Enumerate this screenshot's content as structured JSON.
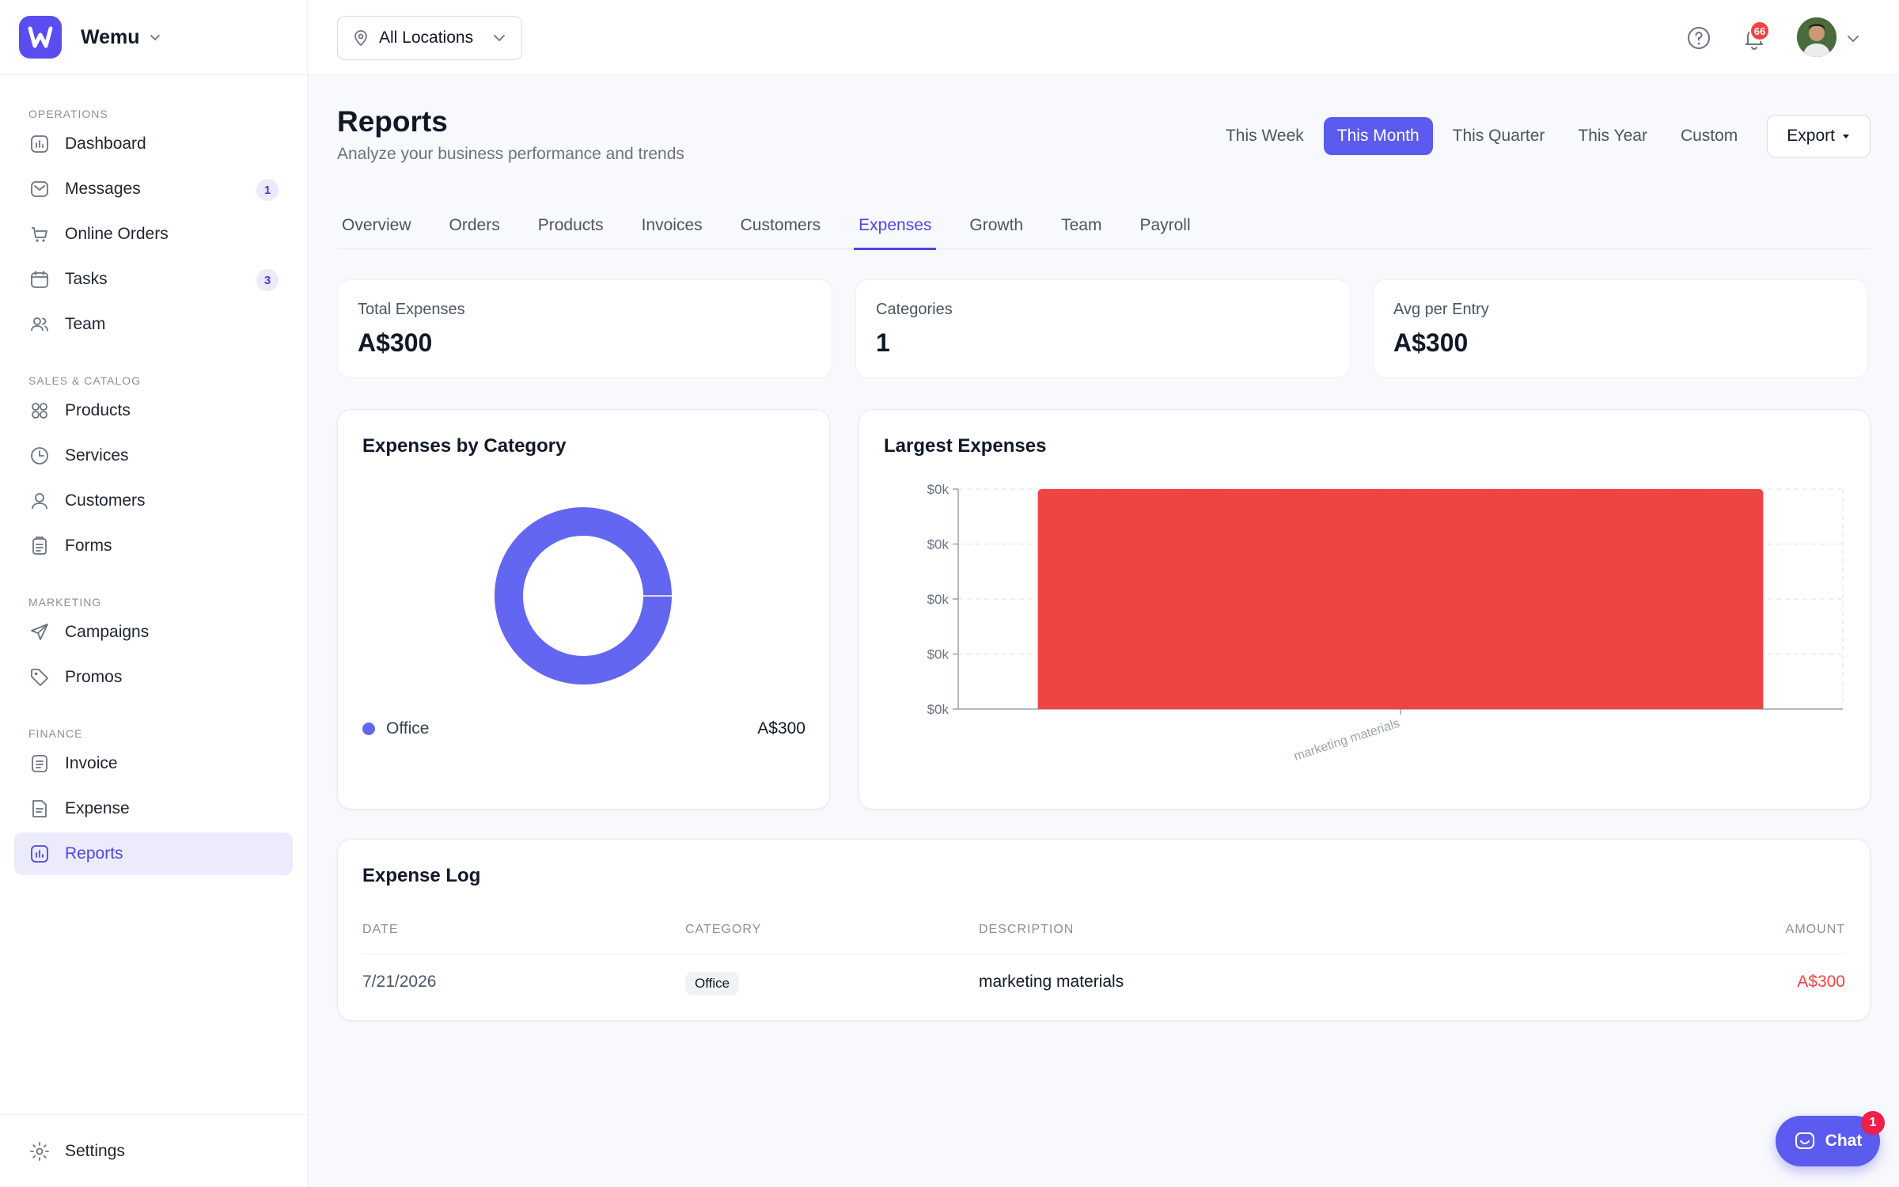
{
  "brand": {
    "name": "Wemu"
  },
  "sidebar": {
    "sections": [
      {
        "title": "OPERATIONS",
        "items": [
          {
            "label": "Dashboard",
            "icon": "bar-chart-icon"
          },
          {
            "label": "Messages",
            "icon": "inbox-icon",
            "badge": "1"
          },
          {
            "label": "Online Orders",
            "icon": "cart-icon"
          },
          {
            "label": "Tasks",
            "icon": "calendar-icon",
            "badge": "3"
          },
          {
            "label": "Team",
            "icon": "users-icon"
          }
        ]
      },
      {
        "title": "SALES & CATALOG",
        "items": [
          {
            "label": "Products",
            "icon": "grid-icon"
          },
          {
            "label": "Services",
            "icon": "clock-icon"
          },
          {
            "label": "Customers",
            "icon": "user-icon"
          },
          {
            "label": "Forms",
            "icon": "clipboard-icon"
          }
        ]
      },
      {
        "title": "MARKETING",
        "items": [
          {
            "label": "Campaigns",
            "icon": "send-icon"
          },
          {
            "label": "Promos",
            "icon": "tag-icon"
          }
        ]
      },
      {
        "title": "FINANCE",
        "items": [
          {
            "label": "Invoice",
            "icon": "document-icon"
          },
          {
            "label": "Expense",
            "icon": "receipt-icon"
          },
          {
            "label": "Reports",
            "icon": "report-chart-icon",
            "active": true
          }
        ]
      }
    ],
    "settings_label": "Settings"
  },
  "topbar": {
    "location_label": "All Locations",
    "notification_count": "66"
  },
  "page": {
    "title": "Reports",
    "subtitle": "Analyze your business performance and trends",
    "ranges": [
      "This Week",
      "This Month",
      "This Quarter",
      "This Year",
      "Custom"
    ],
    "active_range": "This Month",
    "export_label": "Export"
  },
  "tabs": [
    "Overview",
    "Orders",
    "Products",
    "Invoices",
    "Customers",
    "Expenses",
    "Growth",
    "Team",
    "Payroll"
  ],
  "active_tab": "Expenses",
  "stats": [
    {
      "label": "Total Expenses",
      "value": "A$300"
    },
    {
      "label": "Categories",
      "value": "1"
    },
    {
      "label": "Avg per Entry",
      "value": "A$300"
    }
  ],
  "colors": {
    "accent": "#5b5bf0",
    "donut_office": "#6366f1",
    "bar_expense": "#ef4444",
    "amount_negative": "#ef4444"
  },
  "category_card": {
    "title": "Expenses by Category",
    "legend": [
      {
        "name": "Office",
        "value": "A$300"
      }
    ]
  },
  "largest_card": {
    "title": "Largest Expenses"
  },
  "chart_data": [
    {
      "type": "pie",
      "title": "Expenses by Category",
      "categories": [
        "Office"
      ],
      "values": [
        300
      ],
      "donut": true
    },
    {
      "type": "bar",
      "title": "Largest Expenses",
      "categories": [
        "marketing materials"
      ],
      "values": [
        300
      ],
      "yticks": [
        "$0k",
        "$0k",
        "$0k",
        "$0k",
        "$0k"
      ],
      "grid": true
    }
  ],
  "expense_log": {
    "title": "Expense Log",
    "columns": [
      "DATE",
      "CATEGORY",
      "DESCRIPTION",
      "AMOUNT"
    ],
    "rows": [
      {
        "date": "7/21/2026",
        "category": "Office",
        "description": "marketing materials",
        "amount": "A$300"
      }
    ]
  },
  "chat": {
    "label": "Chat",
    "badge": "1"
  }
}
